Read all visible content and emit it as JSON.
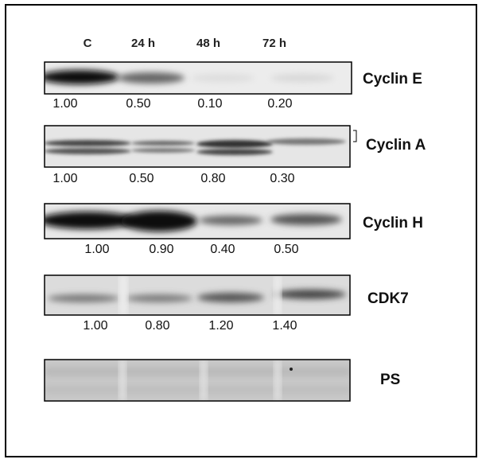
{
  "lanes": [
    "C",
    "24 h",
    "48 h",
    "72 h"
  ],
  "panels": [
    {
      "label": "Cyclin E",
      "values": [
        "1.00",
        "0.50",
        "0.10",
        "0.20"
      ]
    },
    {
      "label": "Cyclin A",
      "values": [
        "1.00",
        "0.50",
        "0.80",
        "0.30"
      ]
    },
    {
      "label": "Cyclin H",
      "values": [
        "1.00",
        "0.90",
        "0.40",
        "0.50"
      ]
    },
    {
      "label": "CDK7",
      "values": [
        "1.00",
        "0.80",
        "1.20",
        "1.40"
      ]
    },
    {
      "label": "PS"
    }
  ]
}
